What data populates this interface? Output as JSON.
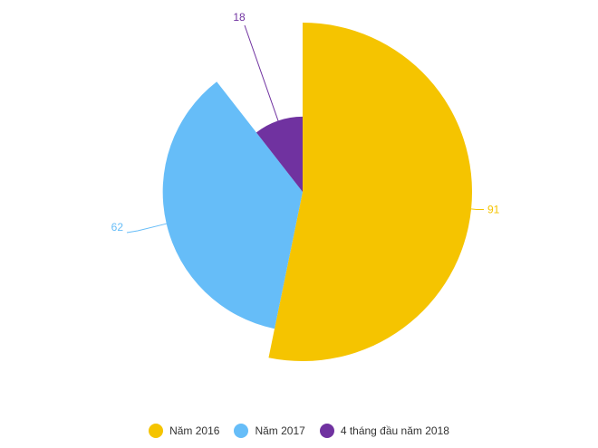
{
  "chart_data": {
    "type": "pie",
    "variant": "variable-radius",
    "title": "",
    "slices": [
      {
        "label": "Năm 2016",
        "value": 91,
        "value_label": "91",
        "color": "#F5C400"
      },
      {
        "label": "Năm 2017",
        "value": 62,
        "value_label": "62",
        "color": "#66BDF8"
      },
      {
        "label": "4 tháng đầu năm 2018",
        "value": 18,
        "value_label": "18",
        "color": "#7032A0"
      }
    ],
    "legend_position": "bottom-center"
  },
  "legend": {
    "items": [
      {
        "label": "Năm 2016",
        "color": "#F5C400"
      },
      {
        "label": "Năm 2017",
        "color": "#66BDF8"
      },
      {
        "label": "4 tháng đầu năm 2018",
        "color": "#7032A0"
      }
    ]
  }
}
